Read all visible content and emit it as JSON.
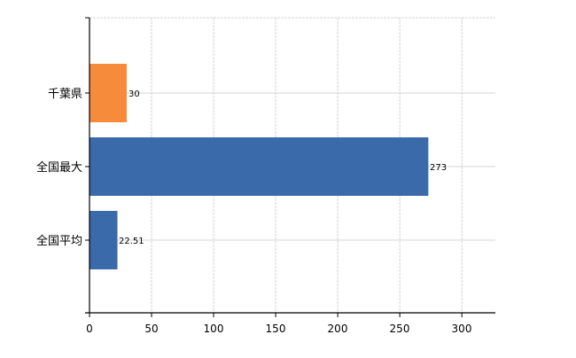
{
  "chart_data": {
    "type": "bar",
    "orientation": "horizontal",
    "categories": [
      "千葉県",
      "全国最大",
      "全国平均"
    ],
    "values": [
      30,
      273,
      22.51
    ],
    "data_labels": [
      "30",
      "273",
      "22.51"
    ],
    "bar_colors": [
      "#F68B3C",
      "#3A6AAA",
      "#3A6AAA"
    ],
    "xlim": [
      0,
      327
    ],
    "xticks": [
      0,
      50,
      100,
      150,
      200,
      250,
      300
    ],
    "title": "",
    "xlabel": "",
    "ylabel": "",
    "grid": true,
    "legend": "none"
  }
}
